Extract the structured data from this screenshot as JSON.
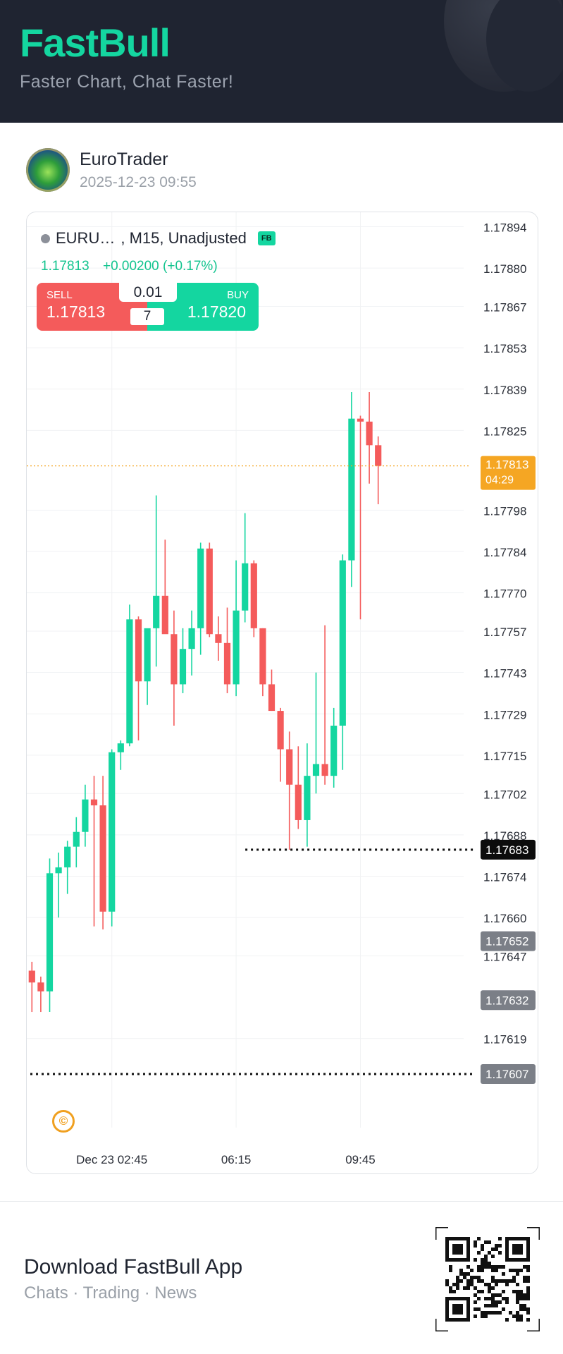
{
  "header": {
    "brand": "FastBull",
    "tagline": "Faster Chart, Chat Faster!"
  },
  "post": {
    "username": "EuroTrader",
    "timestamp": "2025-12-23 09:55"
  },
  "chart_header": {
    "symbol": "EURU…",
    "details": ", M15, Unadjusted",
    "badge": "FB",
    "last_price": "1.17813",
    "change": "+0.00200 (+0.17%)"
  },
  "trade_widget": {
    "sell_label": "SELL",
    "sell_price": "1.17813",
    "buy_label": "BUY",
    "buy_price": "1.17820",
    "lot_size": "0.01",
    "spread": "7"
  },
  "chart_data": {
    "type": "candlestick",
    "y_ticks": [
      "1.17894",
      "1.17880",
      "1.17867",
      "1.17853",
      "1.17839",
      "1.17825",
      "1.17798",
      "1.17784",
      "1.17770",
      "1.17757",
      "1.17743",
      "1.17729",
      "1.17715",
      "1.17702",
      "1.17688",
      "1.17674",
      "1.17660",
      "1.17647",
      "1.17619"
    ],
    "x_ticks": [
      {
        "label": "Dec 23 02:45",
        "candle_index": 9
      },
      {
        "label": "06:15",
        "candle_index": 23
      },
      {
        "label": "09:45",
        "candle_index": 37
      }
    ],
    "ylim": [
      1.17596,
      1.17897
    ],
    "candles": [
      {
        "o": 1.17642,
        "h": 1.17645,
        "l": 1.17628,
        "c": 1.17638
      },
      {
        "o": 1.17638,
        "h": 1.1764,
        "l": 1.17628,
        "c": 1.17635
      },
      {
        "o": 1.17635,
        "h": 1.1768,
        "l": 1.17628,
        "c": 1.17675
      },
      {
        "o": 1.17675,
        "h": 1.17682,
        "l": 1.1766,
        "c": 1.17677
      },
      {
        "o": 1.17677,
        "h": 1.17686,
        "l": 1.17668,
        "c": 1.17684
      },
      {
        "o": 1.17684,
        "h": 1.17694,
        "l": 1.17677,
        "c": 1.17689
      },
      {
        "o": 1.17689,
        "h": 1.17705,
        "l": 1.17684,
        "c": 1.177
      },
      {
        "o": 1.177,
        "h": 1.17708,
        "l": 1.17657,
        "c": 1.17698
      },
      {
        "o": 1.17698,
        "h": 1.17708,
        "l": 1.17656,
        "c": 1.17662
      },
      {
        "o": 1.17662,
        "h": 1.17717,
        "l": 1.17657,
        "c": 1.17716
      },
      {
        "o": 1.17716,
        "h": 1.1772,
        "l": 1.1771,
        "c": 1.17719
      },
      {
        "o": 1.17719,
        "h": 1.17766,
        "l": 1.17718,
        "c": 1.17761
      },
      {
        "o": 1.17761,
        "h": 1.17762,
        "l": 1.1772,
        "c": 1.1774
      },
      {
        "o": 1.1774,
        "h": 1.17755,
        "l": 1.17732,
        "c": 1.17758
      },
      {
        "o": 1.17758,
        "h": 1.17803,
        "l": 1.17745,
        "c": 1.17769
      },
      {
        "o": 1.17769,
        "h": 1.17788,
        "l": 1.17758,
        "c": 1.17756
      },
      {
        "o": 1.17756,
        "h": 1.17764,
        "l": 1.17725,
        "c": 1.17739
      },
      {
        "o": 1.17739,
        "h": 1.17758,
        "l": 1.17736,
        "c": 1.17751
      },
      {
        "o": 1.17751,
        "h": 1.17764,
        "l": 1.17742,
        "c": 1.17758
      },
      {
        "o": 1.17758,
        "h": 1.17787,
        "l": 1.17749,
        "c": 1.17785
      },
      {
        "o": 1.17785,
        "h": 1.17787,
        "l": 1.17755,
        "c": 1.17756
      },
      {
        "o": 1.17756,
        "h": 1.17762,
        "l": 1.17747,
        "c": 1.17753
      },
      {
        "o": 1.17753,
        "h": 1.17765,
        "l": 1.17736,
        "c": 1.17739
      },
      {
        "o": 1.17739,
        "h": 1.17781,
        "l": 1.17735,
        "c": 1.17764
      },
      {
        "o": 1.17764,
        "h": 1.17797,
        "l": 1.1776,
        "c": 1.1778
      },
      {
        "o": 1.1778,
        "h": 1.17781,
        "l": 1.17755,
        "c": 1.17758
      },
      {
        "o": 1.17758,
        "h": 1.17758,
        "l": 1.17735,
        "c": 1.17739
      },
      {
        "o": 1.17739,
        "h": 1.17744,
        "l": 1.1773,
        "c": 1.1773
      },
      {
        "o": 1.1773,
        "h": 1.17731,
        "l": 1.17706,
        "c": 1.17717
      },
      {
        "o": 1.17717,
        "h": 1.17723,
        "l": 1.17683,
        "c": 1.17705
      },
      {
        "o": 1.17705,
        "h": 1.17718,
        "l": 1.1769,
        "c": 1.17693
      },
      {
        "o": 1.17693,
        "h": 1.17719,
        "l": 1.17684,
        "c": 1.17708
      },
      {
        "o": 1.17708,
        "h": 1.17743,
        "l": 1.17702,
        "c": 1.17712
      },
      {
        "o": 1.17712,
        "h": 1.17759,
        "l": 1.17705,
        "c": 1.17708
      },
      {
        "o": 1.17708,
        "h": 1.17731,
        "l": 1.17704,
        "c": 1.17725
      },
      {
        "o": 1.17725,
        "h": 1.17783,
        "l": 1.1771,
        "c": 1.17781
      },
      {
        "o": 1.17781,
        "h": 1.17838,
        "l": 1.17772,
        "c": 1.17829
      },
      {
        "o": 1.17829,
        "h": 1.1783,
        "l": 1.17761,
        "c": 1.17828
      },
      {
        "o": 1.17828,
        "h": 1.17838,
        "l": 1.17807,
        "c": 1.1782
      },
      {
        "o": 1.1782,
        "h": 1.17823,
        "l": 1.178,
        "c": 1.17813
      }
    ],
    "current_price_label": {
      "value": "1.17813",
      "countdown": "04:29",
      "color": "#f5a623"
    },
    "low_line": {
      "value": "1.17683",
      "from_candle": 28
    },
    "level_labels": [
      {
        "value": "1.17652",
        "color": "#7b7f87"
      },
      {
        "value": "1.17632",
        "color": "#7b7f87"
      },
      {
        "value": "1.17607",
        "color": "#7b7f87",
        "dotted_line": true
      }
    ],
    "up_color": "#14d6a0",
    "down_color": "#f45b5b",
    "copyright_glyph": "©"
  },
  "footer": {
    "title": "Download FastBull App",
    "subtitle": "Chats · Trading · News"
  }
}
